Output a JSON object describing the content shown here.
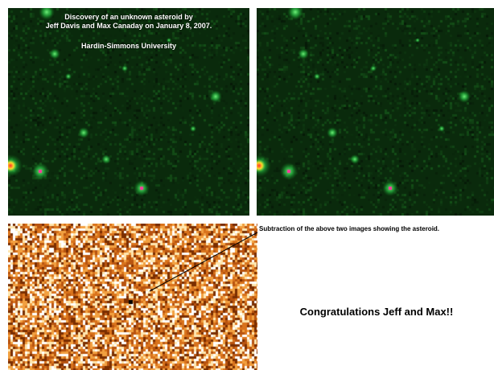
{
  "frame_top_left": {
    "title_line_1": "Discovery of an unknown asteroid by",
    "title_line_2": "Jeff Davis and Max Canaday  on January 8, 2007.",
    "institution": "Hardin-Simmons University"
  },
  "caption": "Subtraction of the above two images showing the asteroid.",
  "congratulations": "Congratulations Jeff and Max!!",
  "colors": {
    "sky": "#0a2a0c",
    "star_glow": "#2fd44a",
    "star_core": "#ff3aa0",
    "diff_dark": "#7a2e00",
    "diff_mid": "#d9731c",
    "diff_light": "#ffe7b0"
  }
}
